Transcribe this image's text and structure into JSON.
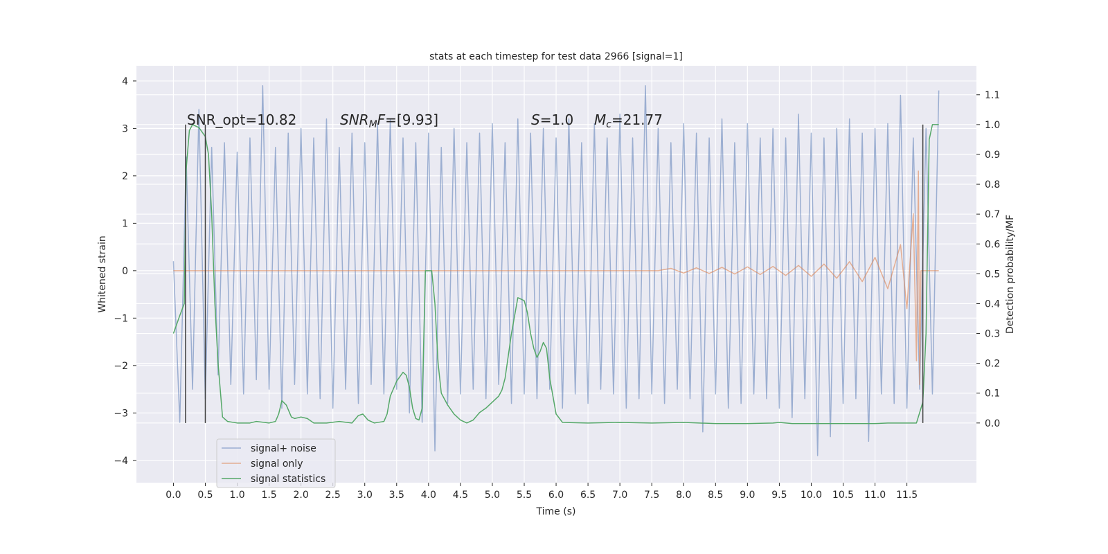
{
  "chart_data": {
    "type": "line",
    "title": "stats at each timestep for test data 2966 [signal=1]",
    "xlabel": "Time (s)",
    "ylabel": "Whitened strain",
    "y2label": "Detection probability/MF",
    "xlim": [
      -0.58,
      12.59
    ],
    "ylim": [
      -4.47,
      4.32
    ],
    "y2lim": [
      -0.2,
      1.197
    ],
    "grid": true,
    "xticks": [
      {
        "value": 0,
        "label": "0.0"
      },
      {
        "value": 0.5,
        "label": "0.5"
      },
      {
        "value": 1,
        "label": "1.0"
      },
      {
        "value": 1.5,
        "label": "1.5"
      },
      {
        "value": 2,
        "label": "2.0"
      },
      {
        "value": 2.5,
        "label": "2.5"
      },
      {
        "value": 3,
        "label": "3.0"
      },
      {
        "value": 3.5,
        "label": "3.5"
      },
      {
        "value": 4,
        "label": "4.0"
      },
      {
        "value": 4.5,
        "label": "4.5"
      },
      {
        "value": 5,
        "label": "5.0"
      },
      {
        "value": 5.5,
        "label": "5.5"
      },
      {
        "value": 6,
        "label": "6.0"
      },
      {
        "value": 6.5,
        "label": "6.5"
      },
      {
        "value": 7,
        "label": "7.0"
      },
      {
        "value": 7.5,
        "label": "7.5"
      },
      {
        "value": 8,
        "label": "8.0"
      },
      {
        "value": 8.5,
        "label": "8.5"
      },
      {
        "value": 9,
        "label": "9.0"
      },
      {
        "value": 9.5,
        "label": "9.5"
      },
      {
        "value": 10,
        "label": "10.0"
      },
      {
        "value": 10.5,
        "label": "10.5"
      },
      {
        "value": 11,
        "label": "11.0"
      },
      {
        "value": 11.5,
        "label": "11.5"
      }
    ],
    "yticks": [
      {
        "value": -4,
        "label": "−4"
      },
      {
        "value": -3,
        "label": "−3"
      },
      {
        "value": -2,
        "label": "−2"
      },
      {
        "value": -1,
        "label": "−1"
      },
      0,
      1,
      2,
      3,
      4
    ],
    "y2ticks": [
      {
        "value": 0,
        "label": "0.0"
      },
      {
        "value": 0.1,
        "label": "0.1"
      },
      {
        "value": 0.2,
        "label": "0.2"
      },
      {
        "value": 0.3,
        "label": "0.3"
      },
      {
        "value": 0.4,
        "label": "0.4"
      },
      {
        "value": 0.5,
        "label": "0.5"
      },
      {
        "value": 0.6,
        "label": "0.6"
      },
      {
        "value": 0.7,
        "label": "0.7"
      },
      {
        "value": 0.8,
        "label": "0.8"
      },
      {
        "value": 0.9,
        "label": "0.9"
      },
      {
        "value": 1,
        "label": "1.0"
      },
      {
        "value": 1.1,
        "label": "1.1"
      }
    ],
    "annotations": [
      [
        {
          "t": "SNR_opt=10.82"
        }
      ],
      [
        {
          "t": "SNR",
          "i": true
        },
        {
          "t": "M",
          "i": true,
          "sub": true
        },
        {
          "t": "F",
          "i": true
        },
        {
          "t": "=[9.93]"
        }
      ],
      [
        {
          "t": "S",
          "i": true
        },
        {
          "t": "=1.0"
        }
      ],
      [
        {
          "t": "M",
          "i": true
        },
        {
          "t": "c",
          "i": true,
          "sub": true
        },
        {
          "t": "=21.77"
        }
      ]
    ],
    "vlines": {
      "x": [
        0.19,
        0.5,
        11.75
      ],
      "ymin": 0,
      "ymax": 1,
      "color": "#404040",
      "axis": "y2"
    },
    "series": [
      {
        "name": "signal+ noise",
        "color": "#4c72b0",
        "alpha": 0.5,
        "x": [
          0,
          0.1,
          0.2,
          0.3,
          0.4,
          0.5,
          0.6,
          0.7,
          0.8,
          0.9,
          1,
          1.1,
          1.2,
          1.3,
          1.4,
          1.5,
          1.6,
          1.7,
          1.8,
          1.9,
          2,
          2.1,
          2.2,
          2.3,
          2.4,
          2.5,
          2.6,
          2.7,
          2.8,
          2.9,
          3,
          3.1,
          3.2,
          3.3,
          3.4,
          3.5,
          3.6,
          3.7,
          3.8,
          3.9,
          4,
          4.1,
          4.2,
          4.3,
          4.4,
          4.5,
          4.6,
          4.7,
          4.8,
          4.9,
          5,
          5.1,
          5.2,
          5.3,
          5.4,
          5.5,
          5.6,
          5.7,
          5.8,
          5.9,
          6,
          6.1,
          6.2,
          6.3,
          6.4,
          6.5,
          6.6,
          6.7,
          6.8,
          6.9,
          7,
          7.1,
          7.2,
          7.3,
          7.4,
          7.5,
          7.6,
          7.7,
          7.8,
          7.9,
          8,
          8.1,
          8.2,
          8.3,
          8.4,
          8.5,
          8.6,
          8.7,
          8.8,
          8.9,
          9,
          9.1,
          9.2,
          9.3,
          9.4,
          9.5,
          9.6,
          9.7,
          9.8,
          9.9,
          10,
          10.1,
          10.2,
          10.3,
          10.4,
          10.5,
          10.6,
          10.7,
          10.8,
          10.9,
          11,
          11.1,
          11.2,
          11.3,
          11.4,
          11.5,
          11.6,
          11.7,
          11.8,
          11.9,
          12
        ],
        "values": [
          0.2,
          -3.2,
          2.4,
          -2.5,
          3.4,
          -2.7,
          2.6,
          -2.2,
          2.7,
          -2.4,
          2.5,
          -2.6,
          2.8,
          -2.3,
          3.9,
          -2.5,
          2.6,
          -2.9,
          2.9,
          -2.4,
          3.0,
          -2.6,
          2.8,
          -2.7,
          3.2,
          -2.9,
          2.6,
          -2.5,
          2.9,
          -2.8,
          2.7,
          -2.4,
          3.1,
          -2.6,
          3.2,
          -2.5,
          2.8,
          -3.0,
          2.7,
          -3.2,
          2.9,
          -3.8,
          2.6,
          -2.8,
          3.0,
          -2.6,
          2.7,
          -2.5,
          2.9,
          -2.7,
          3.1,
          -2.4,
          2.7,
          -2.8,
          3.2,
          -2.6,
          2.9,
          -2.7,
          3.0,
          -2.5,
          2.8,
          -2.9,
          3.2,
          -2.6,
          2.7,
          -2.8,
          3.1,
          -2.5,
          2.8,
          -2.6,
          3.3,
          -2.9,
          2.8,
          -2.7,
          3.9,
          -2.6,
          3.0,
          -2.8,
          2.7,
          -2.5,
          3.1,
          -2.7,
          2.9,
          -3.4,
          2.8,
          -2.6,
          3.2,
          -2.9,
          2.7,
          -2.8,
          3.1,
          -2.6,
          2.8,
          -2.7,
          3.0,
          -2.9,
          2.8,
          -3.1,
          3.3,
          -2.7,
          2.9,
          -3.9,
          2.8,
          -3.5,
          3.0,
          -2.8,
          3.2,
          -2.7,
          2.9,
          -3.6,
          3.0,
          -2.6,
          3.1,
          -2.8,
          3.7,
          -2.9,
          2.8,
          -2.5,
          3.0,
          -2.6,
          3.8
        ]
      },
      {
        "name": "signal only",
        "color": "#dd8452",
        "alpha": 0.6,
        "x": [
          0,
          7.6,
          7.8,
          8.0,
          8.2,
          8.4,
          8.6,
          8.8,
          9.0,
          9.2,
          9.4,
          9.6,
          9.8,
          10.0,
          10.2,
          10.4,
          10.6,
          10.8,
          11.0,
          11.2,
          11.4,
          11.5,
          11.6,
          11.65,
          11.68,
          11.7,
          11.72,
          12.0
        ],
        "values": [
          0,
          0,
          0.05,
          -0.05,
          0.06,
          -0.06,
          0.07,
          -0.07,
          0.08,
          -0.08,
          0.09,
          -0.1,
          0.11,
          -0.12,
          0.14,
          -0.16,
          0.19,
          -0.23,
          0.28,
          -0.38,
          0.55,
          -0.8,
          1.2,
          -1.9,
          2.1,
          -2.4,
          0,
          0
        ]
      },
      {
        "name": "signal statistics",
        "color": "#55a868",
        "alpha": 1,
        "axis": "y2",
        "x": [
          0,
          0.1,
          0.17,
          0.2,
          0.25,
          0.3,
          0.4,
          0.5,
          0.55,
          0.6,
          0.65,
          0.7,
          0.77,
          0.85,
          1.0,
          1.2,
          1.3,
          1.5,
          1.6,
          1.65,
          1.7,
          1.77,
          1.85,
          1.9,
          2.0,
          2.1,
          2.2,
          2.4,
          2.6,
          2.8,
          2.9,
          2.97,
          3.05,
          3.15,
          3.3,
          3.35,
          3.4,
          3.5,
          3.6,
          3.65,
          3.7,
          3.75,
          3.8,
          3.85,
          3.9,
          3.95,
          4.05,
          4.1,
          4.15,
          4.2,
          4.3,
          4.4,
          4.5,
          4.6,
          4.7,
          4.8,
          4.9,
          5.0,
          5.1,
          5.15,
          5.2,
          5.3,
          5.4,
          5.5,
          5.55,
          5.6,
          5.65,
          5.7,
          5.75,
          5.8,
          5.85,
          5.9,
          6.0,
          6.1,
          6.5,
          7.0,
          7.5,
          8.0,
          8.5,
          9.0,
          9.4,
          9.5,
          9.7,
          10.5,
          11.0,
          11.2,
          11.5,
          11.65,
          11.75,
          11.8,
          11.85,
          11.9,
          12.0
        ],
        "values": [
          0.3,
          0.36,
          0.4,
          0.85,
          0.98,
          1.0,
          0.99,
          0.96,
          0.9,
          0.7,
          0.4,
          0.2,
          0.02,
          0.005,
          0.0,
          0.0,
          0.005,
          0.0,
          0.005,
          0.03,
          0.075,
          0.06,
          0.02,
          0.015,
          0.02,
          0.015,
          0.0,
          0.0,
          0.005,
          0.0,
          0.025,
          0.03,
          0.01,
          0.0,
          0.005,
          0.03,
          0.09,
          0.14,
          0.17,
          0.16,
          0.12,
          0.05,
          0.015,
          0.01,
          0.05,
          0.51,
          0.51,
          0.4,
          0.2,
          0.1,
          0.06,
          0.03,
          0.01,
          0.0,
          0.01,
          0.035,
          0.05,
          0.07,
          0.09,
          0.11,
          0.15,
          0.3,
          0.42,
          0.41,
          0.37,
          0.3,
          0.25,
          0.22,
          0.24,
          0.27,
          0.25,
          0.15,
          0.03,
          0.002,
          0.0,
          0.002,
          0.0,
          0.002,
          -0.002,
          -0.002,
          0.0,
          0.002,
          -0.002,
          -0.002,
          -0.002,
          0.0,
          0.0,
          0.0,
          0.07,
          0.3,
          0.95,
          1.0,
          1.0
        ]
      }
    ]
  }
}
